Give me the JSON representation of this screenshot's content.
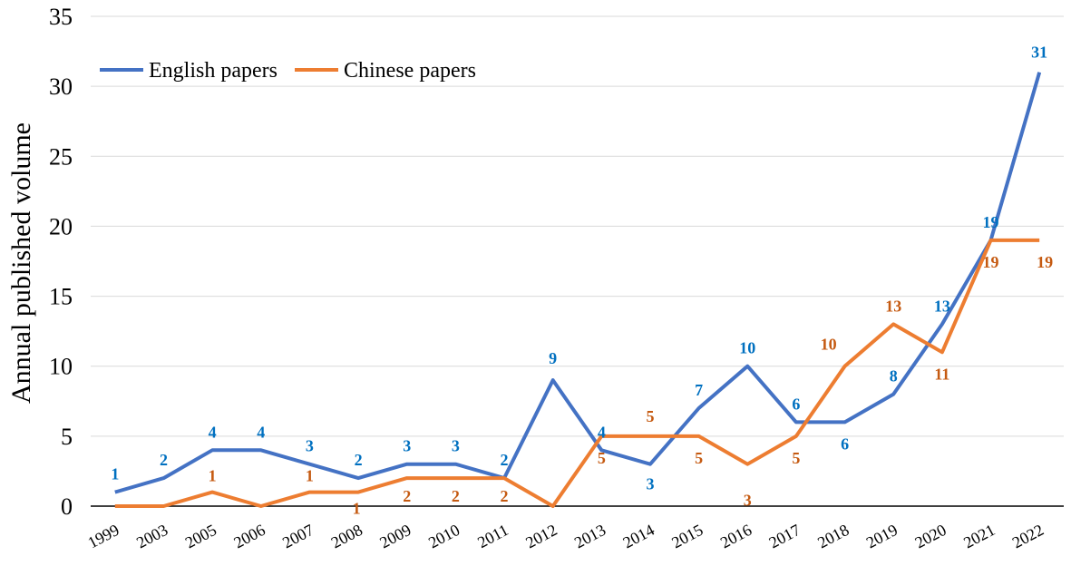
{
  "chart_data": {
    "type": "line",
    "ylabel": "Annual published volume",
    "ylim": [
      0,
      35
    ],
    "yticks": [
      0,
      5,
      10,
      15,
      20,
      25,
      30,
      35
    ],
    "grid": true,
    "legend_placement": "top-left",
    "categories": [
      "1999",
      "2003",
      "2005",
      "2006",
      "2007",
      "2008",
      "2009",
      "2010",
      "2011",
      "2012",
      "2013",
      "2014",
      "2015",
      "2016",
      "2017",
      "2018",
      "2019",
      "2020",
      "2021",
      "2022"
    ],
    "series": [
      {
        "name": "English papers",
        "color": "#4472C4",
        "label_color": "#0070C0",
        "values": [
          1,
          2,
          4,
          4,
          3,
          2,
          3,
          3,
          2,
          9,
          4,
          3,
          7,
          10,
          6,
          6,
          8,
          13,
          19,
          31
        ]
      },
      {
        "name": "Chinese papers",
        "color": "#ED7D31",
        "label_color": "#C55A11",
        "values": [
          0,
          0,
          1,
          0,
          1,
          1,
          2,
          2,
          2,
          0,
          5,
          5,
          5,
          3,
          5,
          10,
          13,
          11,
          19,
          19
        ]
      }
    ]
  }
}
